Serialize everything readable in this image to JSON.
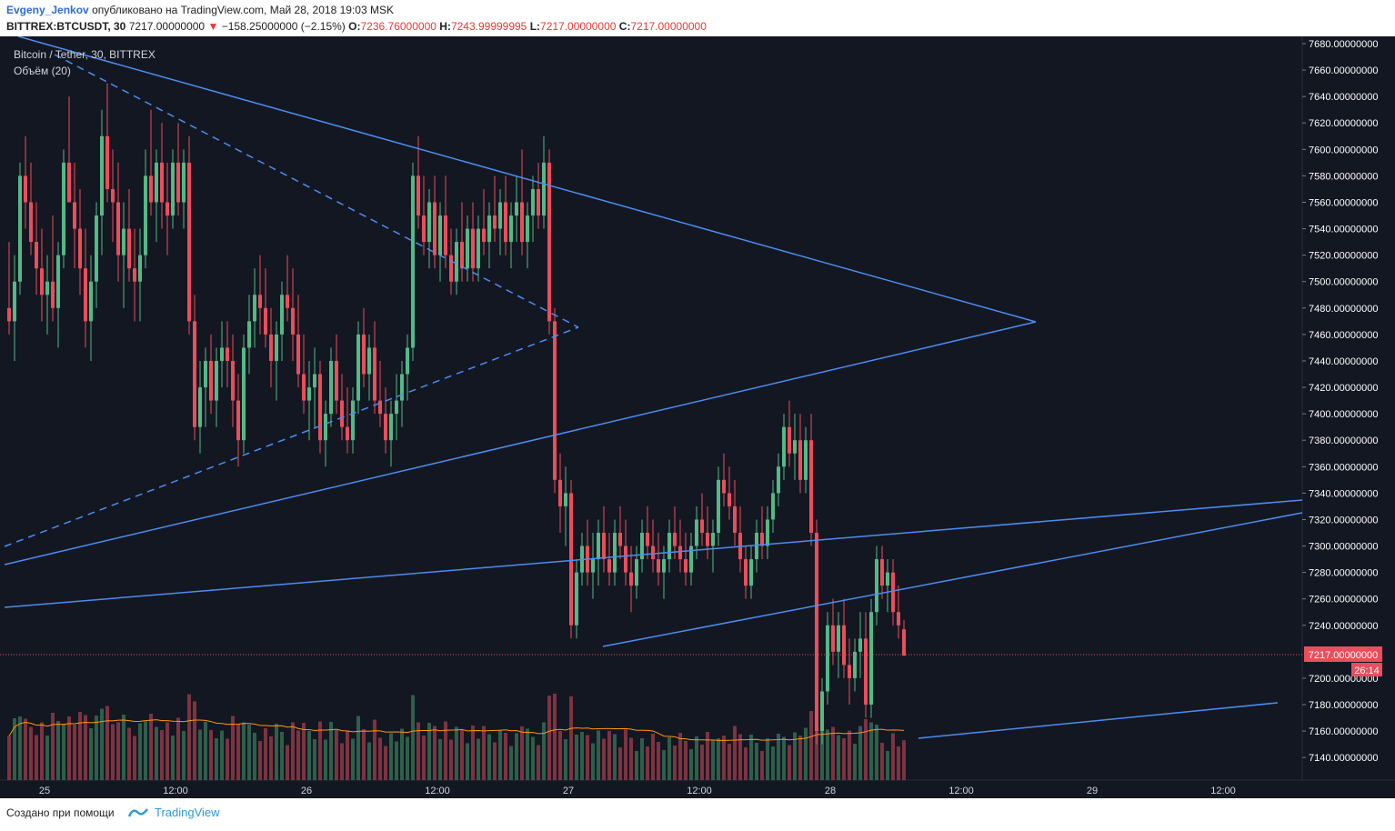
{
  "header": {
    "author": "Evgeny_Jenkov",
    "published": "опубликовано на TradingView.com, Май 28, 2018 19:03 MSK",
    "symbol": "BITTREX:BTCUSDT, 30",
    "price": "7217.00000000",
    "change": "−158.25000000 (−2.15%)",
    "o_label": "O:",
    "o_value": "7236.76000000",
    "h_label": "H:",
    "h_value": "7243.99999995",
    "l_label": "L:",
    "l_value": "7217.00000000",
    "c_label": "C:",
    "c_value": "7217.00000000"
  },
  "legend": {
    "title": "Bitcoin / Tether, 30, BITTREX",
    "volume": "Объём (20)"
  },
  "price_tag": {
    "value": "7217.00000000",
    "countdown": "26:14"
  },
  "footer": {
    "made_with": "Создано при помощи",
    "brand": "TradingView"
  },
  "colors": {
    "bg": "#131722",
    "up": "#53b987",
    "down": "#eb4d5c",
    "trend": "#4c8df0",
    "ma": "#ff9800",
    "axis_text": "#ffffff"
  },
  "chart_data": {
    "type": "candlestick",
    "y_axis_ticks": [
      "7680.00000000",
      "7660.00000000",
      "7640.00000000",
      "7620.00000000",
      "7600.00000000",
      "7580.00000000",
      "7560.00000000",
      "7540.00000000",
      "7520.00000000",
      "7500.00000000",
      "7480.00000000",
      "7460.00000000",
      "7440.00000000",
      "7420.00000000",
      "7400.00000000",
      "7380.00000000",
      "7360.00000000",
      "7340.00000000",
      "7320.00000000",
      "7300.00000000",
      "7280.00000000",
      "7260.00000000",
      "7240.00000000",
      "7200.00000000",
      "7180.00000000",
      "7160.00000000",
      "7140.00000000"
    ],
    "x_axis_ticks": [
      "25",
      "12:00",
      "26",
      "12:00",
      "27",
      "12:00",
      "28",
      "12:00",
      "29",
      "12:00"
    ],
    "ylim": [
      7130,
      7690
    ],
    "bars_per_day": 48,
    "candles": [
      [
        7480,
        7530,
        7460,
        7470
      ],
      [
        7470,
        7520,
        7440,
        7500
      ],
      [
        7500,
        7590,
        7490,
        7580
      ],
      [
        7580,
        7610,
        7540,
        7560
      ],
      [
        7560,
        7590,
        7520,
        7530
      ],
      [
        7530,
        7560,
        7490,
        7510
      ],
      [
        7510,
        7540,
        7470,
        7490
      ],
      [
        7490,
        7520,
        7460,
        7500
      ],
      [
        7500,
        7550,
        7470,
        7480
      ],
      [
        7480,
        7530,
        7450,
        7520
      ],
      [
        7520,
        7600,
        7510,
        7590
      ],
      [
        7590,
        7640,
        7560,
        7560
      ],
      [
        7560,
        7590,
        7510,
        7540
      ],
      [
        7540,
        7570,
        7490,
        7510
      ],
      [
        7510,
        7540,
        7450,
        7470
      ],
      [
        7470,
        7520,
        7440,
        7500
      ],
      [
        7500,
        7560,
        7480,
        7550
      ],
      [
        7550,
        7630,
        7520,
        7610
      ],
      [
        7610,
        7650,
        7560,
        7570
      ],
      [
        7570,
        7600,
        7530,
        7560
      ],
      [
        7560,
        7590,
        7500,
        7520
      ],
      [
        7520,
        7560,
        7480,
        7540
      ],
      [
        7540,
        7570,
        7500,
        7510
      ],
      [
        7510,
        7540,
        7470,
        7500
      ],
      [
        7500,
        7540,
        7470,
        7520
      ],
      [
        7520,
        7600,
        7510,
        7580
      ],
      [
        7580,
        7630,
        7550,
        7560
      ],
      [
        7560,
        7600,
        7530,
        7590
      ],
      [
        7590,
        7620,
        7540,
        7560
      ],
      [
        7560,
        7590,
        7520,
        7550
      ],
      [
        7550,
        7600,
        7540,
        7590
      ],
      [
        7590,
        7620,
        7550,
        7560
      ],
      [
        7560,
        7600,
        7540,
        7590
      ],
      [
        7590,
        7610,
        7460,
        7470
      ],
      [
        7470,
        7490,
        7380,
        7390
      ],
      [
        7390,
        7440,
        7370,
        7420
      ],
      [
        7420,
        7450,
        7390,
        7440
      ],
      [
        7440,
        7460,
        7400,
        7410
      ],
      [
        7410,
        7450,
        7390,
        7440
      ],
      [
        7440,
        7470,
        7420,
        7450
      ],
      [
        7450,
        7470,
        7420,
        7440
      ],
      [
        7440,
        7460,
        7390,
        7410
      ],
      [
        7410,
        7430,
        7360,
        7380
      ],
      [
        7380,
        7460,
        7370,
        7450
      ],
      [
        7450,
        7490,
        7430,
        7470
      ],
      [
        7470,
        7510,
        7450,
        7490
      ],
      [
        7490,
        7520,
        7460,
        7480
      ],
      [
        7480,
        7510,
        7450,
        7460
      ],
      [
        7460,
        7480,
        7420,
        7440
      ],
      [
        7440,
        7470,
        7410,
        7460
      ],
      [
        7460,
        7500,
        7440,
        7490
      ],
      [
        7490,
        7520,
        7470,
        7480
      ],
      [
        7480,
        7510,
        7440,
        7460
      ],
      [
        7460,
        7490,
        7420,
        7430
      ],
      [
        7430,
        7460,
        7400,
        7410
      ],
      [
        7410,
        7440,
        7380,
        7420
      ],
      [
        7420,
        7450,
        7390,
        7430
      ],
      [
        7430,
        7440,
        7370,
        7380
      ],
      [
        7380,
        7410,
        7360,
        7400
      ],
      [
        7400,
        7450,
        7390,
        7440
      ],
      [
        7440,
        7460,
        7400,
        7410
      ],
      [
        7410,
        7430,
        7380,
        7390
      ],
      [
        7390,
        7420,
        7370,
        7380
      ],
      [
        7380,
        7420,
        7370,
        7410
      ],
      [
        7410,
        7470,
        7400,
        7460
      ],
      [
        7460,
        7480,
        7420,
        7430
      ],
      [
        7430,
        7460,
        7410,
        7450
      ],
      [
        7450,
        7470,
        7400,
        7410
      ],
      [
        7410,
        7440,
        7390,
        7400
      ],
      [
        7400,
        7420,
        7370,
        7380
      ],
      [
        7380,
        7410,
        7360,
        7400
      ],
      [
        7400,
        7430,
        7380,
        7410
      ],
      [
        7410,
        7440,
        7390,
        7430
      ],
      [
        7430,
        7460,
        7410,
        7450
      ],
      [
        7450,
        7590,
        7440,
        7580
      ],
      [
        7580,
        7610,
        7540,
        7550
      ],
      [
        7550,
        7580,
        7520,
        7530
      ],
      [
        7530,
        7570,
        7510,
        7560
      ],
      [
        7560,
        7580,
        7510,
        7520
      ],
      [
        7520,
        7560,
        7500,
        7550
      ],
      [
        7550,
        7580,
        7510,
        7520
      ],
      [
        7520,
        7540,
        7490,
        7500
      ],
      [
        7500,
        7540,
        7490,
        7530
      ],
      [
        7530,
        7560,
        7500,
        7510
      ],
      [
        7510,
        7550,
        7500,
        7540
      ],
      [
        7540,
        7560,
        7500,
        7510
      ],
      [
        7510,
        7550,
        7500,
        7540
      ],
      [
        7540,
        7570,
        7520,
        7530
      ],
      [
        7530,
        7560,
        7510,
        7550
      ],
      [
        7550,
        7580,
        7530,
        7540
      ],
      [
        7540,
        7570,
        7520,
        7560
      ],
      [
        7560,
        7580,
        7520,
        7530
      ],
      [
        7530,
        7560,
        7510,
        7550
      ],
      [
        7550,
        7580,
        7530,
        7560
      ],
      [
        7560,
        7600,
        7520,
        7530
      ],
      [
        7530,
        7560,
        7510,
        7550
      ],
      [
        7550,
        7580,
        7530,
        7570
      ],
      [
        7570,
        7590,
        7540,
        7550
      ],
      [
        7550,
        7610,
        7540,
        7590
      ],
      [
        7590,
        7600,
        7460,
        7470
      ],
      [
        7470,
        7480,
        7340,
        7350
      ],
      [
        7350,
        7370,
        7310,
        7330
      ],
      [
        7330,
        7360,
        7300,
        7340
      ],
      [
        7340,
        7350,
        7230,
        7240
      ],
      [
        7240,
        7290,
        7230,
        7280
      ],
      [
        7280,
        7310,
        7270,
        7300
      ],
      [
        7300,
        7320,
        7270,
        7280
      ],
      [
        7280,
        7310,
        7260,
        7290
      ],
      [
        7290,
        7320,
        7270,
        7310
      ],
      [
        7310,
        7330,
        7280,
        7290
      ],
      [
        7290,
        7310,
        7270,
        7280
      ],
      [
        7280,
        7320,
        7270,
        7310
      ],
      [
        7310,
        7330,
        7290,
        7300
      ],
      [
        7300,
        7320,
        7270,
        7280
      ],
      [
        7280,
        7300,
        7250,
        7270
      ],
      [
        7270,
        7300,
        7260,
        7290
      ],
      [
        7290,
        7320,
        7280,
        7310
      ],
      [
        7310,
        7330,
        7290,
        7300
      ],
      [
        7300,
        7320,
        7280,
        7290
      ],
      [
        7290,
        7310,
        7270,
        7280
      ],
      [
        7280,
        7300,
        7260,
        7290
      ],
      [
        7290,
        7320,
        7280,
        7310
      ],
      [
        7310,
        7330,
        7290,
        7300
      ],
      [
        7300,
        7320,
        7280,
        7290
      ],
      [
        7290,
        7310,
        7270,
        7280
      ],
      [
        7280,
        7310,
        7270,
        7300
      ],
      [
        7300,
        7330,
        7290,
        7320
      ],
      [
        7320,
        7340,
        7300,
        7310
      ],
      [
        7310,
        7330,
        7290,
        7300
      ],
      [
        7300,
        7320,
        7280,
        7310
      ],
      [
        7310,
        7360,
        7300,
        7350
      ],
      [
        7350,
        7370,
        7330,
        7340
      ],
      [
        7340,
        7360,
        7320,
        7330
      ],
      [
        7330,
        7350,
        7300,
        7310
      ],
      [
        7310,
        7330,
        7280,
        7290
      ],
      [
        7290,
        7300,
        7260,
        7270
      ],
      [
        7270,
        7300,
        7260,
        7290
      ],
      [
        7290,
        7320,
        7280,
        7310
      ],
      [
        7310,
        7330,
        7290,
        7300
      ],
      [
        7300,
        7330,
        7290,
        7320
      ],
      [
        7320,
        7350,
        7310,
        7340
      ],
      [
        7340,
        7370,
        7330,
        7360
      ],
      [
        7360,
        7400,
        7350,
        7390
      ],
      [
        7390,
        7410,
        7360,
        7370
      ],
      [
        7370,
        7400,
        7350,
        7380
      ],
      [
        7380,
        7400,
        7340,
        7350
      ],
      [
        7350,
        7390,
        7340,
        7380
      ],
      [
        7380,
        7400,
        7300,
        7310
      ],
      [
        7310,
        7320,
        7150,
        7160
      ],
      [
        7160,
        7200,
        7150,
        7190
      ],
      [
        7190,
        7250,
        7180,
        7240
      ],
      [
        7240,
        7260,
        7210,
        7220
      ],
      [
        7220,
        7250,
        7200,
        7240
      ],
      [
        7240,
        7260,
        7200,
        7210
      ],
      [
        7210,
        7230,
        7180,
        7200
      ],
      [
        7200,
        7230,
        7190,
        7220
      ],
      [
        7220,
        7250,
        7200,
        7230
      ],
      [
        7230,
        7250,
        7170,
        7180
      ],
      [
        7180,
        7260,
        7170,
        7250
      ],
      [
        7250,
        7300,
        7240,
        7290
      ],
      [
        7290,
        7300,
        7260,
        7270
      ],
      [
        7270,
        7290,
        7250,
        7280
      ],
      [
        7280,
        7290,
        7240,
        7250
      ],
      [
        7250,
        7270,
        7230,
        7240
      ],
      [
        7237,
        7244,
        7217,
        7217
      ]
    ],
    "volume_ma_period": 20
  }
}
